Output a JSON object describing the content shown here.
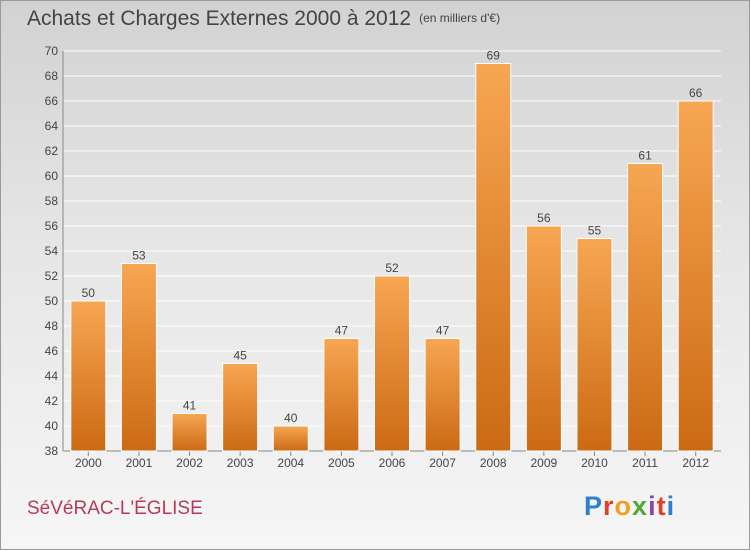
{
  "header": {
    "title": "Achats et Charges Externes 2000 à 2012",
    "unit_note": "(en milliers d'€)"
  },
  "footer": {
    "commune": "SéVéRAC-L'ÉGLISE",
    "logo_text": "Proxiti",
    "logo_colors": [
      "#2e7fd0",
      "#e0402a",
      "#f0a020",
      "#52a832",
      "#8e44ad",
      "#e0402a",
      "#2e7fd0"
    ]
  },
  "colors": {
    "bar_top": "#f7a653",
    "bar_bottom": "#cc6a14",
    "grid": "#ffffff",
    "axis_text": "#444444",
    "commune": "#b73a5a"
  },
  "chart_data": {
    "type": "bar",
    "title": "Achats et Charges Externes 2000 à 2012",
    "subtitle": "(en milliers d'€)",
    "xlabel": "",
    "ylabel": "",
    "categories": [
      "2000",
      "2001",
      "2002",
      "2003",
      "2004",
      "2005",
      "2006",
      "2007",
      "2008",
      "2009",
      "2010",
      "2011",
      "2012"
    ],
    "values": [
      50,
      53,
      41,
      45,
      40,
      47,
      52,
      47,
      69,
      56,
      55,
      61,
      66
    ],
    "ylim": [
      38,
      70
    ],
    "ytick_step": 2,
    "grid": true,
    "data_labels": true
  }
}
